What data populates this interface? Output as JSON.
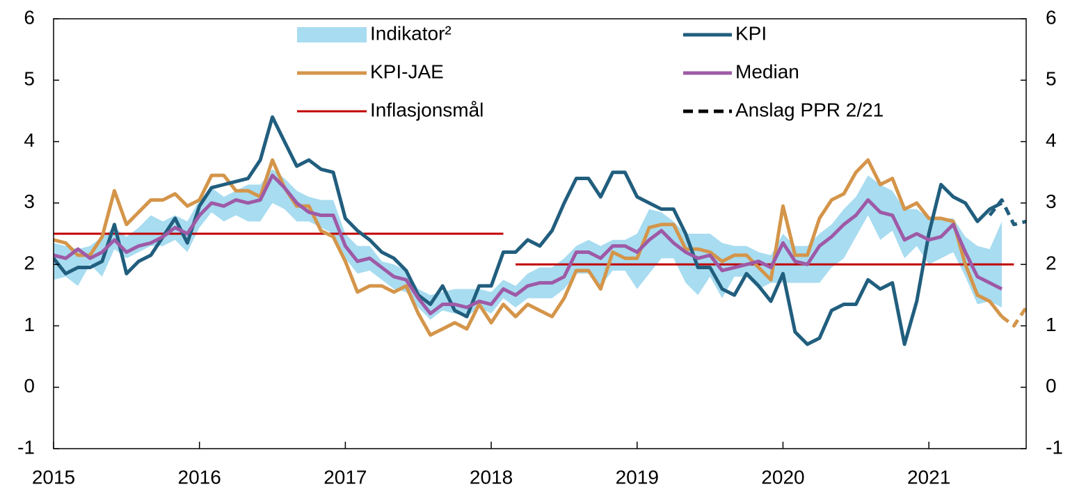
{
  "chart_data": {
    "type": "line",
    "x": [
      2015,
      2015.083,
      2015.167,
      2015.25,
      2015.333,
      2015.417,
      2015.5,
      2015.583,
      2015.667,
      2015.75,
      2015.833,
      2015.917,
      2016,
      2016.083,
      2016.167,
      2016.25,
      2016.333,
      2016.417,
      2016.5,
      2016.583,
      2016.667,
      2016.75,
      2016.833,
      2016.917,
      2017,
      2017.083,
      2017.167,
      2017.25,
      2017.333,
      2017.417,
      2017.5,
      2017.583,
      2017.667,
      2017.75,
      2017.833,
      2017.917,
      2018,
      2018.083,
      2018.167,
      2018.25,
      2018.333,
      2018.417,
      2018.5,
      2018.583,
      2018.667,
      2018.75,
      2018.833,
      2018.917,
      2019,
      2019.083,
      2019.167,
      2019.25,
      2019.333,
      2019.417,
      2019.5,
      2019.583,
      2019.667,
      2019.75,
      2019.833,
      2019.917,
      2020,
      2020.083,
      2020.167,
      2020.25,
      2020.333,
      2020.417,
      2020.5,
      2020.583,
      2020.667,
      2020.75,
      2020.833,
      2020.917,
      2021,
      2021.083,
      2021.167,
      2021.25,
      2021.333,
      2021.417,
      2021.5
    ],
    "band": {
      "name": "Indikator²",
      "color": "#a8dcf0",
      "low": [
        1.75,
        1.8,
        1.65,
        2.0,
        1.8,
        2.25,
        2.1,
        2.2,
        2.3,
        2.3,
        2.4,
        2.2,
        2.6,
        2.85,
        2.7,
        2.8,
        2.7,
        2.7,
        3.0,
        2.9,
        2.7,
        2.7,
        2.6,
        2.5,
        2.1,
        1.85,
        1.9,
        1.75,
        1.6,
        1.55,
        1.3,
        1.1,
        1.25,
        1.2,
        1.15,
        1.3,
        1.2,
        1.45,
        1.3,
        1.45,
        1.45,
        1.45,
        1.6,
        1.85,
        1.85,
        1.65,
        1.9,
        1.9,
        1.6,
        1.85,
        2.1,
        2.1,
        1.7,
        1.5,
        1.8,
        1.45,
        1.8,
        1.8,
        1.6,
        1.7,
        1.7,
        1.7,
        1.7,
        1.7,
        1.95,
        2.1,
        2.45,
        2.8,
        2.4,
        2.55,
        2.1,
        2.3,
        2.0,
        2.1,
        2.2,
        1.8,
        1.35,
        1.4,
        1.3
      ],
      "high": [
        2.35,
        2.3,
        2.25,
        2.3,
        2.45,
        2.6,
        2.45,
        2.6,
        2.8,
        2.7,
        2.8,
        2.7,
        3.05,
        3.25,
        3.1,
        3.2,
        3.3,
        3.3,
        3.55,
        3.4,
        3.2,
        3.1,
        3.05,
        3.05,
        2.5,
        2.3,
        2.3,
        2.05,
        2.0,
        1.9,
        1.6,
        1.5,
        1.55,
        1.6,
        1.6,
        1.6,
        1.55,
        1.75,
        1.65,
        1.85,
        1.95,
        1.95,
        2.1,
        2.3,
        2.4,
        2.3,
        2.4,
        2.4,
        2.5,
        2.9,
        2.85,
        2.7,
        2.5,
        2.5,
        2.5,
        2.35,
        2.3,
        2.3,
        2.2,
        2.15,
        2.5,
        2.3,
        2.3,
        2.5,
        2.65,
        2.9,
        3.1,
        3.45,
        3.3,
        3.2,
        2.9,
        2.9,
        2.75,
        2.75,
        2.75,
        2.45,
        2.3,
        2.25,
        2.7
      ]
    },
    "target": {
      "name": "Inflasjonsmål",
      "color": "#c00000",
      "x": [
        2015,
        2018.083,
        2018.125,
        2018.167,
        2021.583
      ],
      "values": [
        2.5,
        2.5,
        null,
        2,
        2
      ]
    },
    "series": [
      {
        "name": "KPI",
        "color": "#215e7e",
        "values": [
          2.1,
          1.85,
          1.95,
          1.95,
          2.05,
          2.65,
          1.85,
          2.05,
          2.15,
          2.45,
          2.75,
          2.35,
          2.95,
          3.25,
          3.3,
          3.35,
          3.4,
          3.7,
          4.4,
          4.0,
          3.6,
          3.7,
          3.55,
          3.5,
          2.75,
          2.55,
          2.4,
          2.2,
          2.1,
          1.9,
          1.5,
          1.35,
          1.65,
          1.25,
          1.15,
          1.65,
          1.65,
          2.2,
          2.2,
          2.4,
          2.3,
          2.55,
          3.0,
          3.4,
          3.4,
          3.1,
          3.5,
          3.5,
          3.1,
          3.0,
          2.9,
          2.9,
          2.5,
          1.95,
          1.95,
          1.6,
          1.5,
          1.85,
          1.65,
          1.4,
          1.85,
          0.9,
          0.7,
          0.8,
          1.25,
          1.35,
          1.35,
          1.75,
          1.6,
          1.7,
          0.7,
          1.4,
          2.5,
          3.3,
          3.1,
          3.0,
          2.7,
          2.9,
          3.0
        ],
        "forecast_x": [
          2021.417,
          2021.5,
          2021.583,
          2021.667
        ],
        "forecast_values": [
          2.8,
          3.05,
          2.65,
          2.7
        ]
      },
      {
        "name": "KPI-JAE",
        "color": "#d4954a",
        "values": [
          2.4,
          2.35,
          2.15,
          2.15,
          2.45,
          3.2,
          2.65,
          2.85,
          3.05,
          3.05,
          3.15,
          2.95,
          3.05,
          3.45,
          3.45,
          3.2,
          3.2,
          3.1,
          3.7,
          3.25,
          2.95,
          2.95,
          2.55,
          2.45,
          2.05,
          1.55,
          1.65,
          1.65,
          1.55,
          1.65,
          1.2,
          0.85,
          0.95,
          1.05,
          0.95,
          1.35,
          1.05,
          1.35,
          1.15,
          1.35,
          1.25,
          1.15,
          1.45,
          1.9,
          1.9,
          1.6,
          2.2,
          2.1,
          2.1,
          2.6,
          2.65,
          2.65,
          2.25,
          2.25,
          2.2,
          2.05,
          2.15,
          2.15,
          1.95,
          1.75,
          2.95,
          2.15,
          2.15,
          2.75,
          3.05,
          3.15,
          3.5,
          3.7,
          3.3,
          3.4,
          2.9,
          3.0,
          2.75,
          2.75,
          2.7,
          2.0,
          1.5,
          1.4,
          1.15
        ],
        "forecast_x": [
          2021.5,
          2021.583,
          2021.667
        ],
        "forecast_values": [
          1.15,
          1.0,
          1.3
        ]
      },
      {
        "name": "Median",
        "color": "#9e5aa6",
        "values": [
          2.15,
          2.1,
          2.25,
          2.1,
          2.2,
          2.4,
          2.2,
          2.3,
          2.35,
          2.45,
          2.6,
          2.5,
          2.8,
          3.0,
          2.95,
          3.05,
          3.0,
          3.05,
          3.45,
          3.25,
          3.0,
          2.85,
          2.8,
          2.8,
          2.3,
          2.05,
          2.1,
          1.95,
          1.8,
          1.75,
          1.45,
          1.2,
          1.35,
          1.35,
          1.3,
          1.4,
          1.35,
          1.6,
          1.5,
          1.65,
          1.7,
          1.7,
          1.8,
          2.2,
          2.2,
          2.1,
          2.3,
          2.3,
          2.2,
          2.4,
          2.55,
          2.35,
          2.2,
          2.1,
          2.15,
          1.9,
          1.95,
          2.0,
          2.05,
          1.95,
          2.35,
          2.05,
          2.0,
          2.3,
          2.45,
          2.65,
          2.8,
          3.05,
          2.85,
          2.8,
          2.4,
          2.5,
          2.4,
          2.45,
          2.65,
          2.2,
          1.8,
          1.7,
          1.6
        ]
      }
    ],
    "forecast_label": "Anslag PPR 2/21",
    "forecast_color": "#000000",
    "xlim": [
      2015,
      2021.667
    ],
    "xticks": [
      2015,
      2016,
      2017,
      2018,
      2019,
      2020,
      2021
    ],
    "ylim": [
      -1,
      6
    ],
    "yticks": [
      -1,
      0,
      1,
      2,
      3,
      4,
      5,
      6
    ],
    "y2lim": [
      -1,
      6
    ],
    "y2ticks": [
      -1,
      0,
      1,
      2,
      3,
      4,
      5,
      6
    ]
  }
}
